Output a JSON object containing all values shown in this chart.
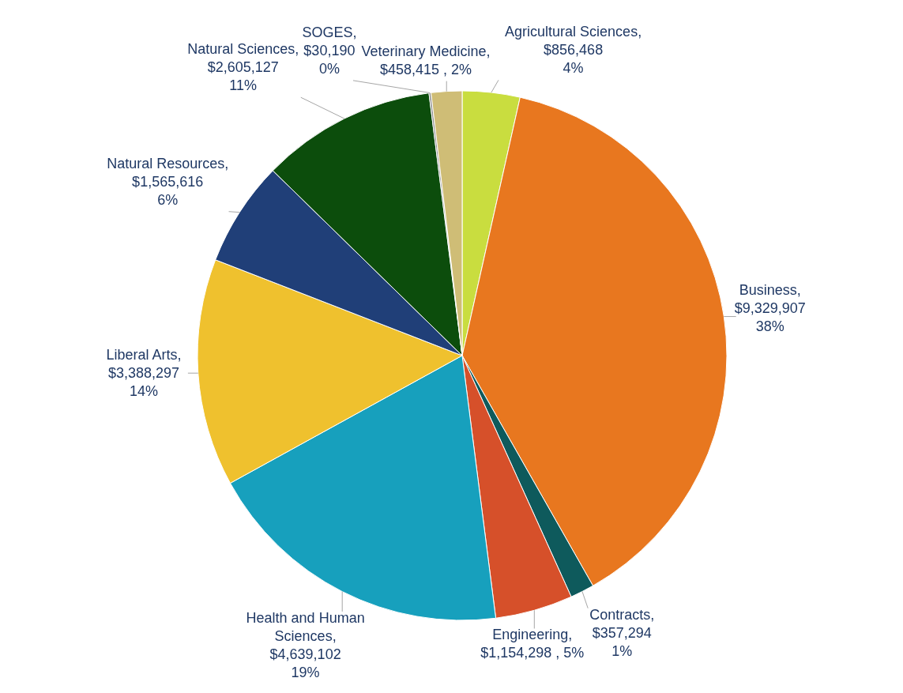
{
  "chart_data": {
    "type": "pie",
    "categories": [
      "Agricultural Sciences",
      "Business",
      "Contracts",
      "Engineering",
      "Health and Human Sciences",
      "Liberal Arts",
      "Natural Resources",
      "Natural Sciences",
      "SOGES",
      "Veterinary Medicine"
    ],
    "values": [
      856468,
      9329907,
      357294,
      1154298,
      4639102,
      3388297,
      1565616,
      2605127,
      30190,
      458415
    ],
    "colors": [
      "#c9dd3f",
      "#e8771f",
      "#0e5a5c",
      "#d6502a",
      "#17a0bd",
      "#efc12e",
      "#203f78",
      "#0c4d0c",
      "#8c8c8c",
      "#cfbd76"
    ],
    "value_labels": [
      ",\n$856,468\n4%",
      ",\n$9,329,907\n38%",
      ",\n$357,294\n1%",
      ",\n$1,154,298 , 5%",
      ",\n$4,639,102\n19%",
      ",\n$3,388,297\n14%",
      ",\n$1,565,616\n6%",
      ",\n$2,605,127\n11%",
      ",\n$30,190\n0%",
      ",\n$458,415 , 2%"
    ]
  }
}
